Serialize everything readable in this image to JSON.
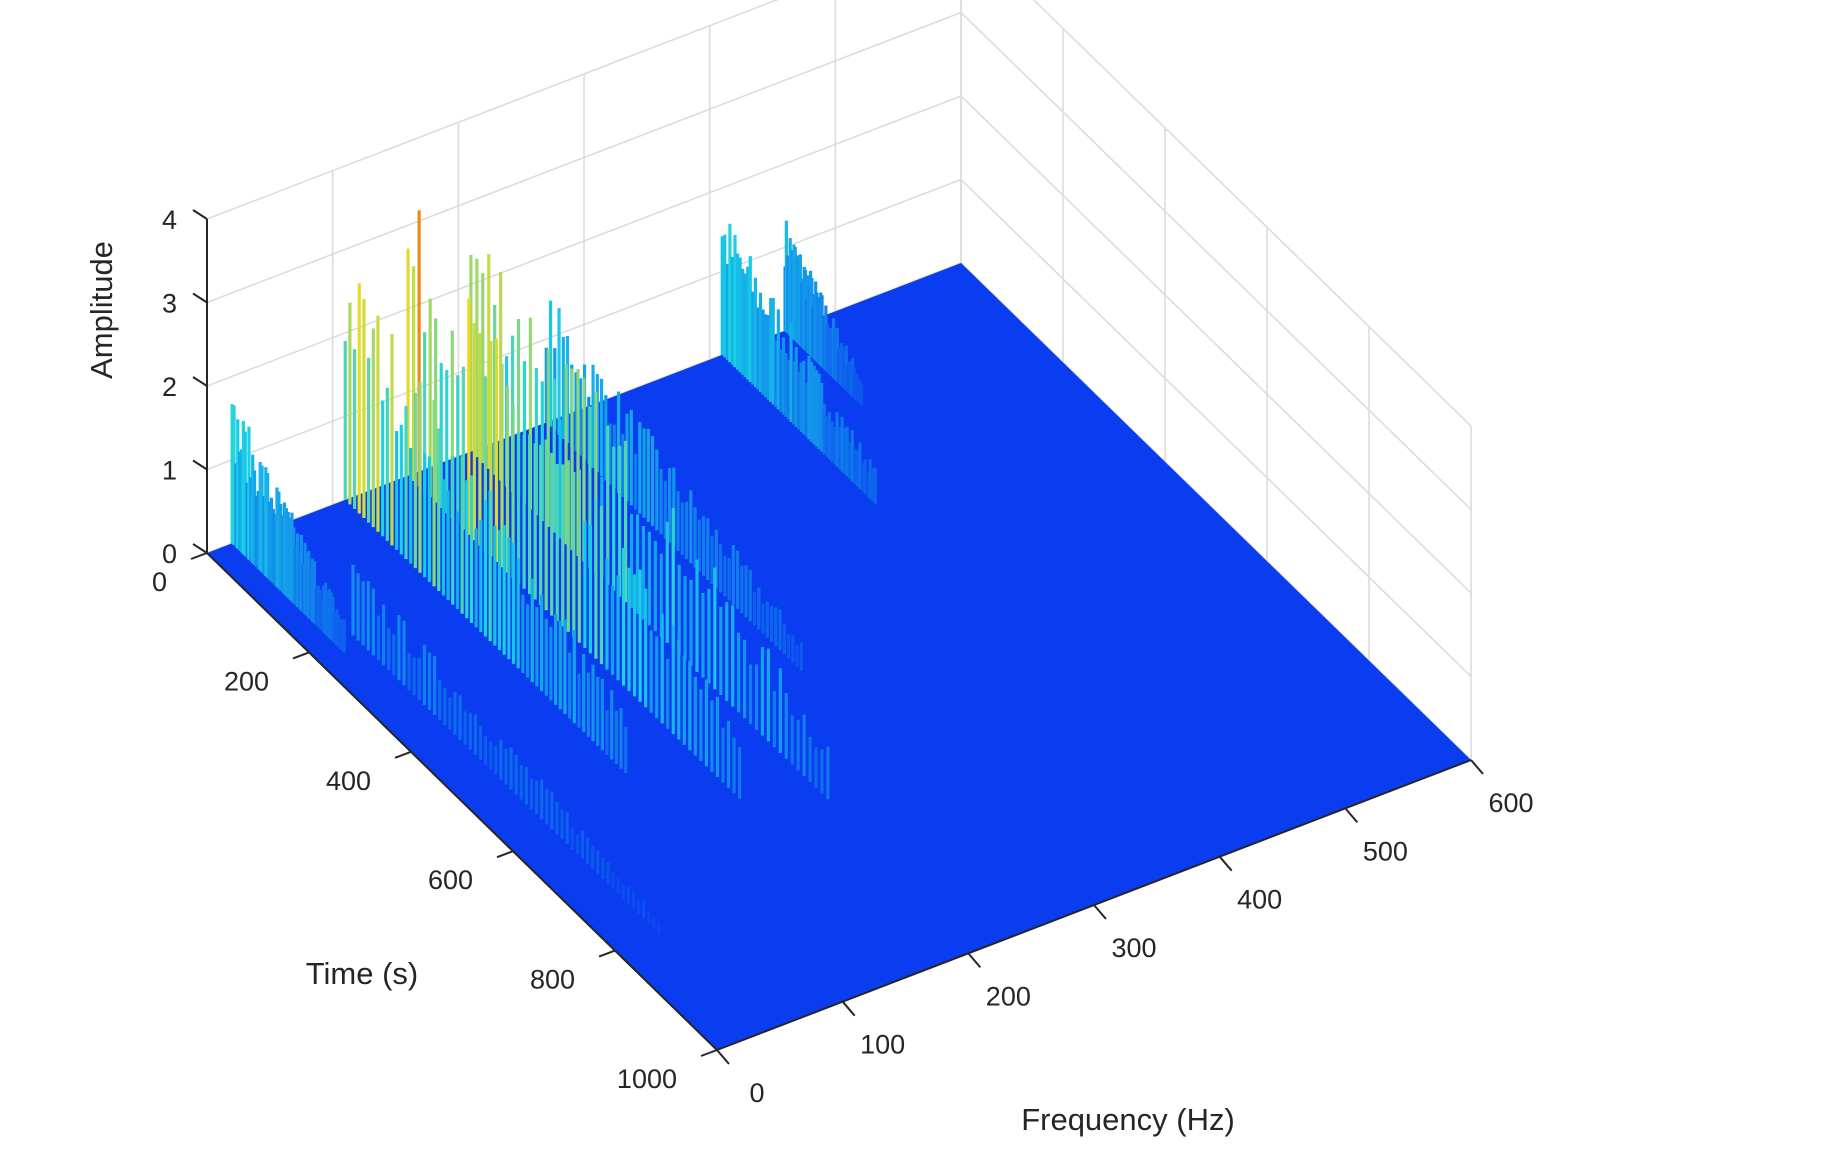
{
  "chart_data": {
    "type": "surface3d",
    "title": "",
    "xlabel": "Frequency (Hz)",
    "ylabel": "Time (s)",
    "zlabel": "Amplitude",
    "xlim": [
      0,
      600
    ],
    "ylim": [
      0,
      1000
    ],
    "zlim": [
      0,
      4
    ],
    "x_ticks": [
      "0",
      "100",
      "200",
      "300",
      "400",
      "500",
      "600"
    ],
    "y_ticks": [
      "0",
      "200",
      "400",
      "600",
      "800",
      "1000"
    ],
    "z_ticks": [
      "0",
      "1",
      "2",
      "3",
      "4"
    ],
    "grid": true,
    "colormap": "jet",
    "colors": {
      "low": "#0a3cf0",
      "mid": "#19d2e6",
      "high": "#f0dc1e",
      "peak": "#dc1e0a"
    },
    "ridges": [
      {
        "freq_hz": 20,
        "time_start_s": 0,
        "time_end_s": 220,
        "amplitude": 1.8
      },
      {
        "freq_hz": 35,
        "time_start_s": 200,
        "time_end_s": 800,
        "amplitude": 0.9
      },
      {
        "freq_hz": 110,
        "time_start_s": 0,
        "time_end_s": 550,
        "amplitude": 3.0
      },
      {
        "freq_hz": 160,
        "time_start_s": 0,
        "time_end_s": 650,
        "amplitude": 3.4
      },
      {
        "freq_hz": 210,
        "time_start_s": 0,
        "time_end_s": 700,
        "amplitude": 3.0
      },
      {
        "freq_hz": 270,
        "time_start_s": 0,
        "time_end_s": 500,
        "amplitude": 1.6
      },
      {
        "freq_hz": 410,
        "time_start_s": 0,
        "time_end_s": 300,
        "amplitude": 1.8
      },
      {
        "freq_hz": 460,
        "time_start_s": 0,
        "time_end_s": 150,
        "amplitude": 1.4
      }
    ]
  }
}
